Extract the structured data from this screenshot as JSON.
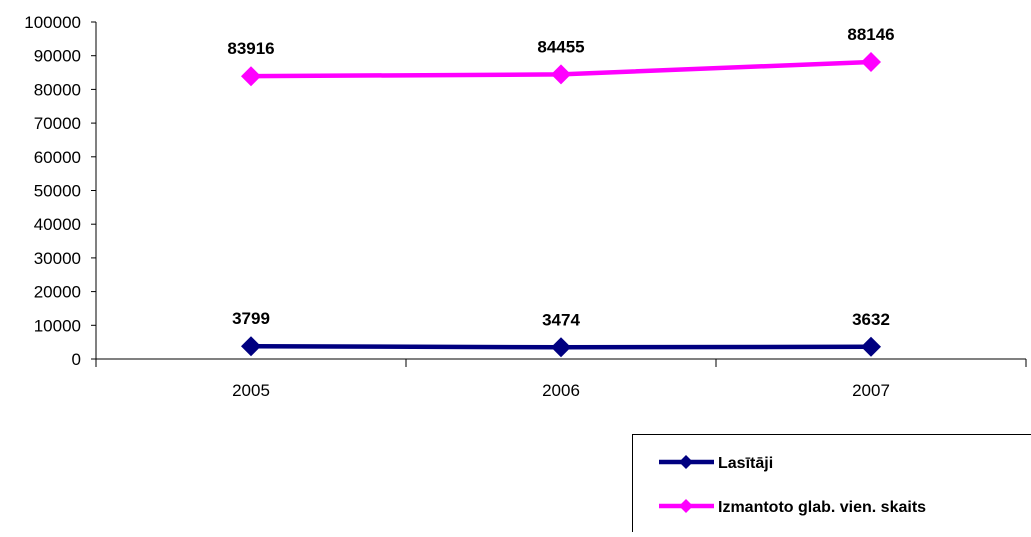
{
  "chart_data": {
    "type": "line",
    "title": "",
    "xlabel": "",
    "ylabel": "",
    "categories": [
      "2005",
      "2006",
      "2007"
    ],
    "ylim": [
      0,
      100000
    ],
    "yticks": [
      0,
      10000,
      20000,
      30000,
      40000,
      50000,
      60000,
      70000,
      80000,
      90000,
      100000
    ],
    "grid": false,
    "legend_position": "bottom-right",
    "series": [
      {
        "name": "Lasītāji",
        "values": [
          3799,
          3474,
          3632
        ],
        "color": "#000080",
        "marker": "diamond"
      },
      {
        "name": "Izmantoto glab. vien. skaits",
        "values": [
          83916,
          84455,
          88146
        ],
        "color": "#ff00ff",
        "marker": "diamond"
      }
    ]
  }
}
